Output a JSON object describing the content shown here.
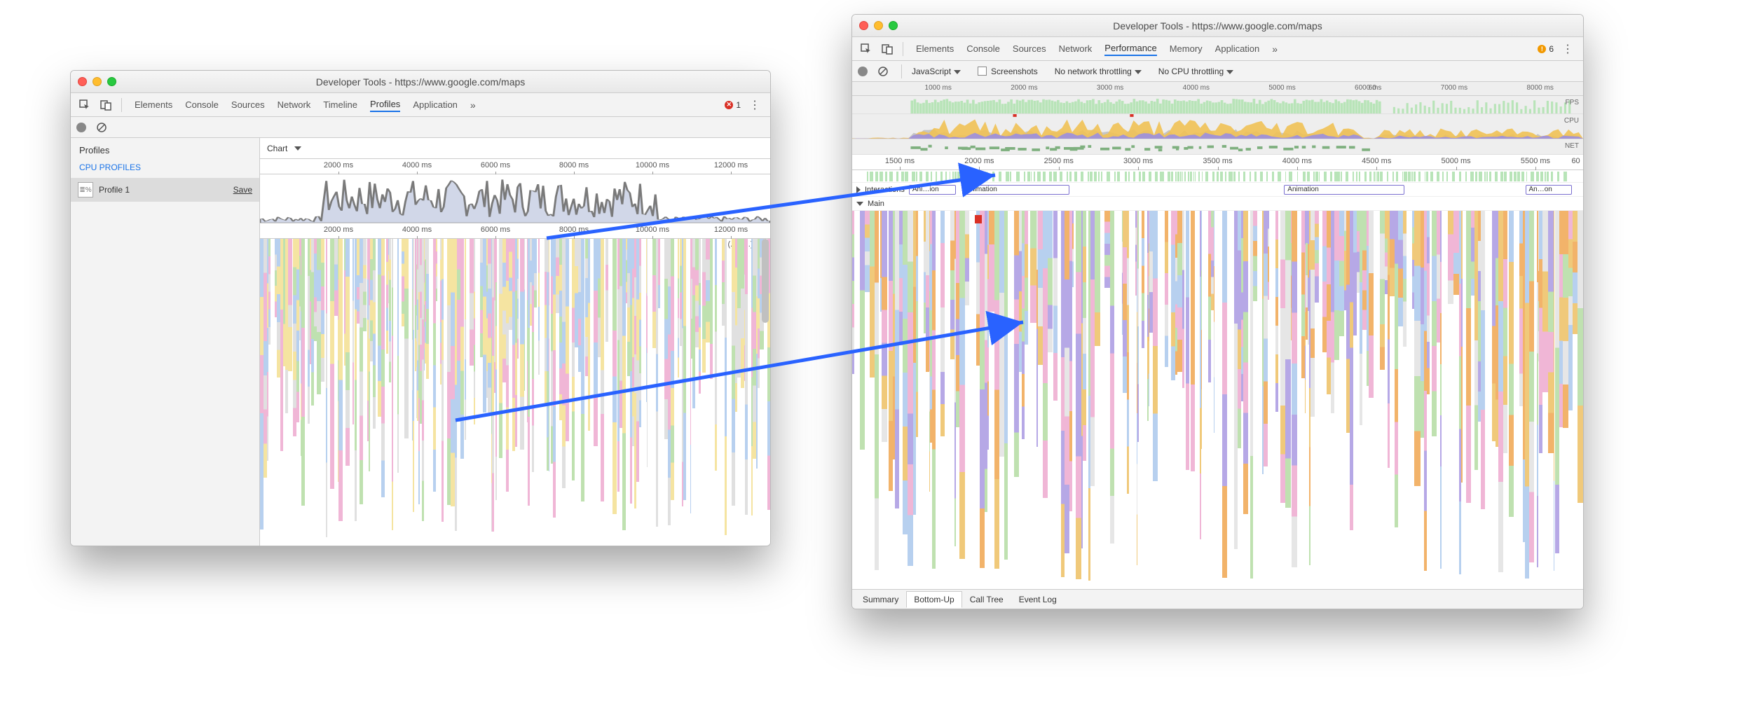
{
  "left_window": {
    "title": "Developer Tools - https://www.google.com/maps",
    "tabs": [
      "Elements",
      "Console",
      "Sources",
      "Network",
      "Timeline",
      "Profiles",
      "Application"
    ],
    "active_tab_index": 5,
    "overflow_glyph": "»",
    "error_count": "1",
    "sidebar": {
      "heading": "Profiles",
      "section": "CPU PROFILES",
      "item_label": "Profile 1",
      "save_label": "Save"
    },
    "chart_dropdown": "Chart",
    "time_ticks_ms": [
      2000,
      4000,
      6000,
      8000,
      10000,
      12000
    ],
    "time_tick_suffix": " ms",
    "ellipsis_labels": "(...)   (...)(...)",
    "overview": {
      "fill": "#d1d7e8",
      "stroke": "#7a7a7a",
      "max_ms": 13000
    },
    "flame": {
      "colors": {
        "pink": "#f0b6d6",
        "green": "#bfe1b0",
        "yellow": "#f5e4a1",
        "blue": "#b7d0ef",
        "grey": "#e0e0e0"
      }
    }
  },
  "right_window": {
    "title": "Developer Tools - https://www.google.com/maps",
    "tabs": [
      "Elements",
      "Console",
      "Sources",
      "Network",
      "Performance",
      "Memory",
      "Application"
    ],
    "active_tab_index": 4,
    "overflow_glyph": "»",
    "warn_count": "6",
    "subbar": {
      "capture_label": "JavaScript",
      "screenshots_label": "Screenshots",
      "net_throttle": "No network throttling",
      "cpu_throttle": "No CPU throttling"
    },
    "overview_time_ticks_ms": [
      1000,
      2000,
      3000,
      4000,
      5000,
      6000,
      7000,
      8000
    ],
    "overview_time_cutoff_label": "60",
    "overview_time_prefix_label": "ms",
    "row_labels": {
      "fps": "FPS",
      "cpu": "CPU",
      "net": "NET"
    },
    "fps_color": "#b8e4b8",
    "cpu_colors": {
      "scripting": "#f0c154",
      "rendering": "#9b8fe0",
      "other": "#c0c0c0"
    },
    "net_color": "#7fb07f",
    "detail_time_ticks_ms": [
      1500,
      2000,
      2500,
      3000,
      3500,
      4000,
      4500,
      5000,
      5500
    ],
    "detail_time_cutoff": "60",
    "tracks": {
      "interactions_label": "Interactions",
      "anim_labels": [
        "Ani…ion",
        "Animation",
        "Animation",
        "An…on"
      ],
      "main_label": "Main"
    },
    "bottom_tabs": [
      "Summary",
      "Bottom-Up",
      "Call Tree",
      "Event Log"
    ],
    "bottom_active_index": 1,
    "flame": {
      "colors": {
        "pink": "#f0b6d6",
        "green": "#bfe1b0",
        "yellow": "#f0c97a",
        "blue": "#b7d0ef",
        "orange": "#f2b36a",
        "purple": "#b6a8e6",
        "grey": "#e6e6e6"
      }
    }
  },
  "arrow_color": "#2962ff"
}
